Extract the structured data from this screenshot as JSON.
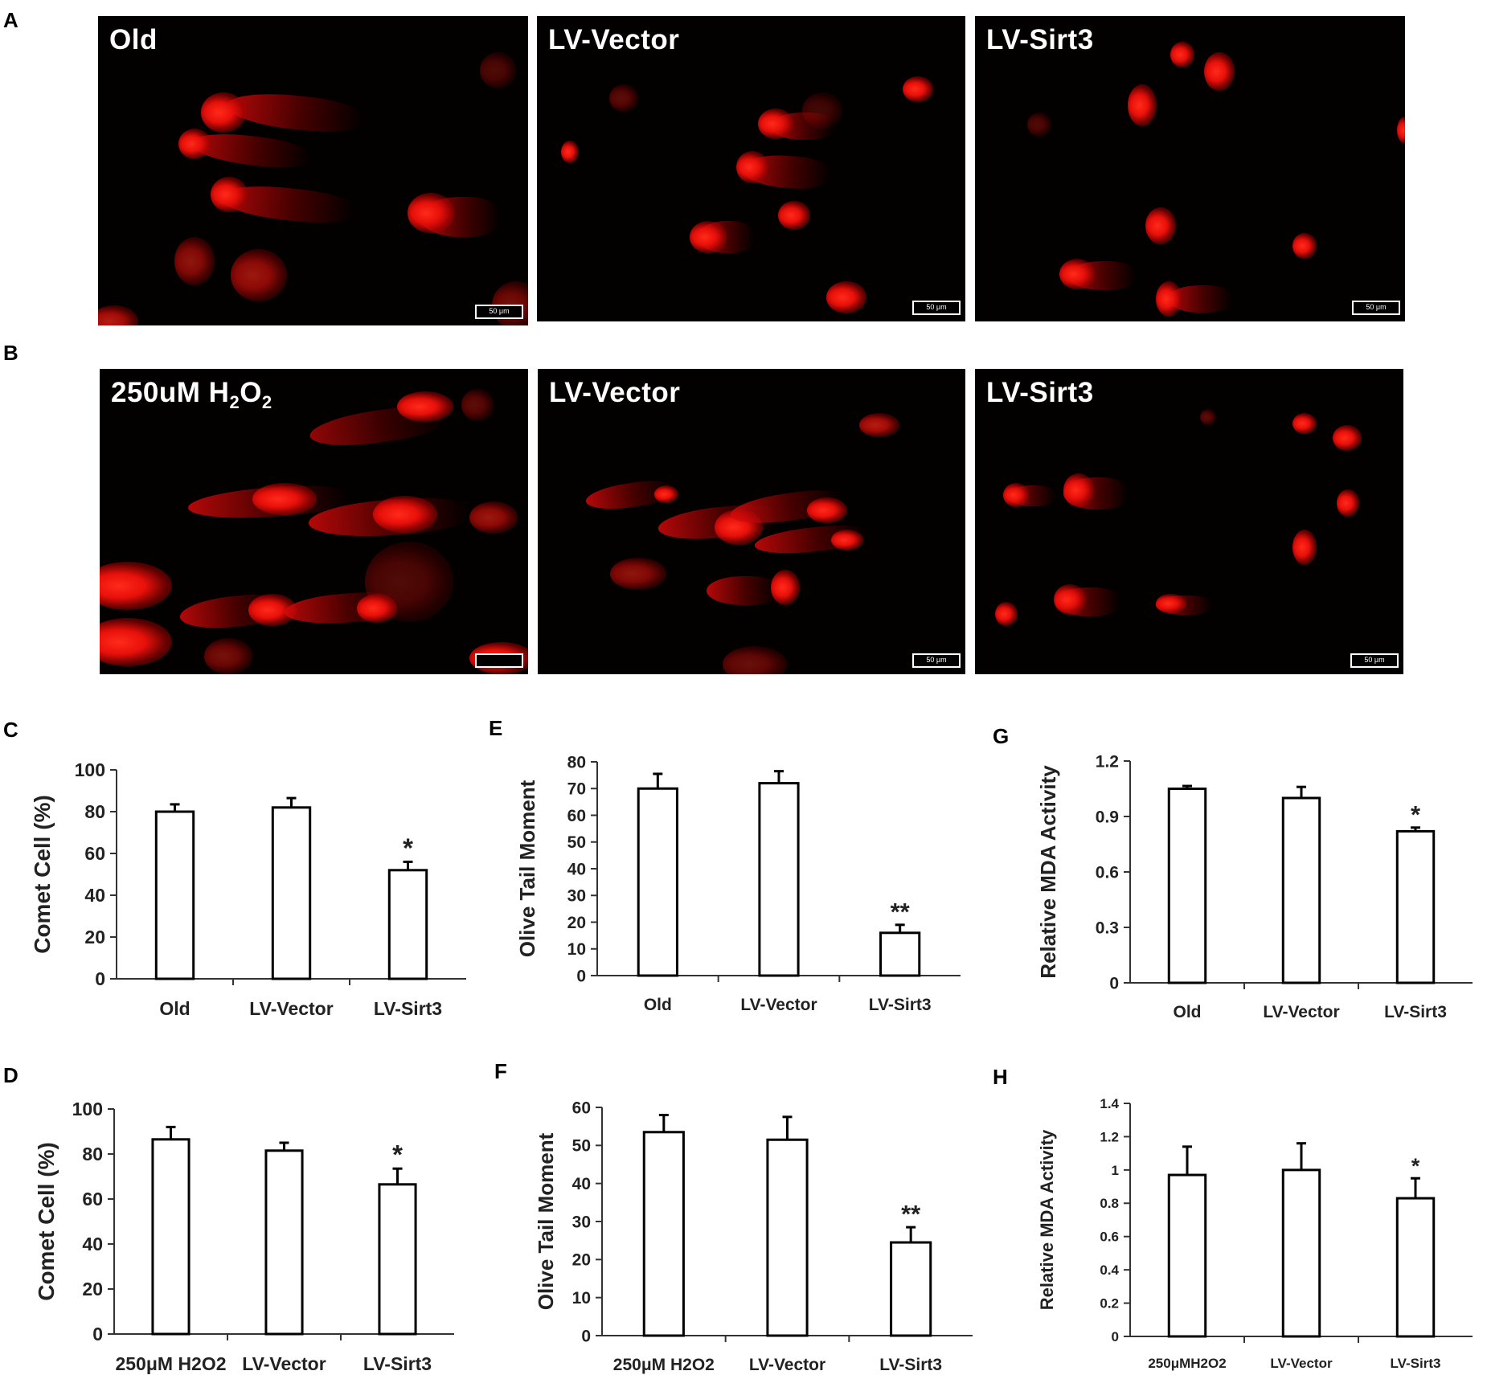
{
  "panel_letters": [
    "A",
    "B",
    "C",
    "D",
    "E",
    "F",
    "G",
    "H"
  ],
  "micrographs": {
    "row_a": [
      {
        "label": "Old",
        "scalebar": "50 μm"
      },
      {
        "label": "LV-Vector",
        "scalebar": "50 μm"
      },
      {
        "label": "LV-Sirt3",
        "scalebar": "50 μm"
      }
    ],
    "row_b": [
      {
        "label_main": "250uM H",
        "label_sub1": "2",
        "label_mid": "O",
        "label_sub2": "2",
        "scalebar": ""
      },
      {
        "label": "LV-Vector",
        "scalebar": "50 μm"
      },
      {
        "label": "LV-Sirt3",
        "scalebar": "50 μm"
      }
    ]
  },
  "colors": {
    "cells": "#e8100a",
    "background": "#030000",
    "bars": "#ffffff",
    "axis": "#333333"
  },
  "chart_data": [
    {
      "panel": "C",
      "type": "bar",
      "categories": [
        "Old",
        "LV-Vector",
        "LV-Sirt3"
      ],
      "values": [
        80,
        82,
        52
      ],
      "errors": [
        3.5,
        4.5,
        4
      ],
      "significance": [
        "",
        "",
        "*"
      ],
      "ylabel": "Comet Cell (%)",
      "ylim": [
        0,
        100
      ],
      "yticks": [
        "0",
        "20",
        "40",
        "60",
        "80",
        "100"
      ]
    },
    {
      "panel": "D",
      "type": "bar",
      "categories": [
        "250μM H2O2",
        "LV-Vector",
        "LV-Sirt3"
      ],
      "values": [
        86.5,
        81.5,
        66.5
      ],
      "errors": [
        5.5,
        3.5,
        7
      ],
      "significance": [
        "",
        "",
        "*"
      ],
      "ylabel": "Comet Cell (%)",
      "ylim": [
        0,
        100
      ],
      "yticks": [
        "0",
        "20",
        "40",
        "60",
        "80",
        "100"
      ]
    },
    {
      "panel": "E",
      "type": "bar",
      "categories": [
        "Old",
        "LV-Vector",
        "LV-Sirt3"
      ],
      "values": [
        70,
        72,
        16
      ],
      "errors": [
        5.5,
        4.5,
        3
      ],
      "significance": [
        "",
        "",
        "**"
      ],
      "ylabel": "Olive Tail Moment",
      "ylim": [
        0,
        80
      ],
      "yticks": [
        "0",
        "10",
        "20",
        "30",
        "40",
        "50",
        "60",
        "70",
        "80"
      ]
    },
    {
      "panel": "F",
      "type": "bar",
      "categories": [
        "250μM H2O2",
        "LV-Vector",
        "LV-Sirt3"
      ],
      "values": [
        53.5,
        51.5,
        24.5
      ],
      "errors": [
        4.5,
        6,
        4
      ],
      "significance": [
        "",
        "",
        "**"
      ],
      "ylabel": "Olive Tail Moment",
      "ylim": [
        0,
        60
      ],
      "yticks": [
        "0",
        "10",
        "20",
        "30",
        "40",
        "50",
        "60"
      ]
    },
    {
      "panel": "G",
      "type": "bar",
      "categories": [
        "Old",
        "LV-Vector",
        "LV-Sirt3"
      ],
      "values": [
        1.05,
        1.0,
        0.82
      ],
      "errors": [
        0.015,
        0.06,
        0.02
      ],
      "significance": [
        "",
        "",
        "*"
      ],
      "ylabel": "Relative MDA Activity",
      "ylim": [
        0,
        1.2
      ],
      "yticks": [
        "0",
        "0.3",
        "0.6",
        "0.9",
        "1.2"
      ]
    },
    {
      "panel": "H",
      "type": "bar",
      "categories": [
        "250μMH2O2",
        "LV-Vector",
        "LV-Sirt3"
      ],
      "values": [
        0.97,
        1.0,
        0.83
      ],
      "errors": [
        0.17,
        0.16,
        0.12
      ],
      "significance": [
        "",
        "",
        "*"
      ],
      "ylabel": "Relative MDA Activity",
      "ylim": [
        0,
        1.4
      ],
      "yticks": [
        "0",
        "0.2",
        "0.4",
        "0.6",
        "0.8",
        "1",
        "1.2",
        "1.4"
      ]
    }
  ]
}
